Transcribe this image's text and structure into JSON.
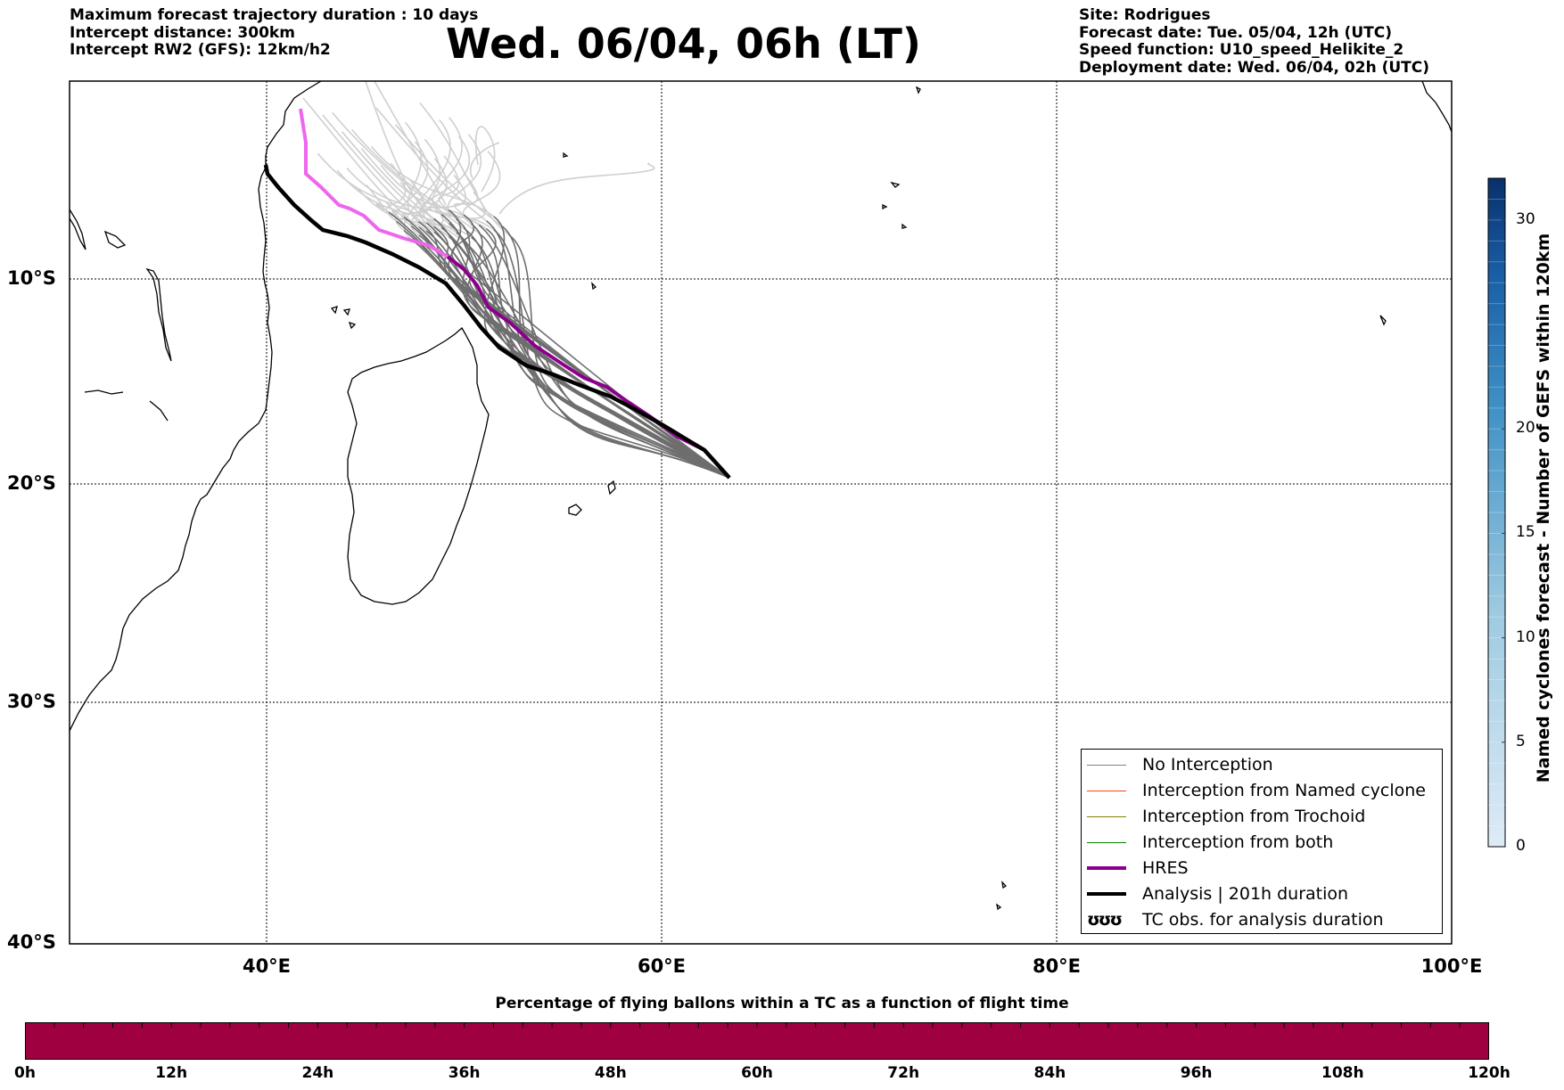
{
  "header": {
    "left_lines": [
      "Maximum forecast trajectory duration : 10 days",
      "Intercept distance: 300km",
      "Intercept RW2 (GFS):  12km/h2"
    ],
    "title": "Wed. 06/04, 06h (LT)",
    "right_lines": [
      "Site: Rodrigues",
      "Forecast date: Tue. 05/04, 12h (UTC)",
      "Speed function: U10_speed_Helikite_2",
      "Deployment date: Wed. 06/04, 02h (UTC)"
    ]
  },
  "map": {
    "extent": {
      "lon": [
        30,
        100
      ],
      "lat": [
        -40,
        0
      ]
    },
    "lat_labels": [
      "10°S",
      "20°S",
      "30°S",
      "40°S"
    ],
    "lon_labels": [
      "40°E",
      "60°E",
      "80°E",
      "100°E"
    ],
    "origin": {
      "lon": 63.4,
      "lat": -19.7
    },
    "colors": {
      "no_interception": "#777777",
      "hres": "#8B008B",
      "hres_late": "#EE66EE",
      "analysis": "#000000"
    }
  },
  "legend": {
    "items": [
      {
        "label": "No Interception",
        "color": "#808080"
      },
      {
        "label": "Interception from Named cyclone",
        "color": "#FF4500"
      },
      {
        "label": "Interception from Trochoid",
        "color": "#808000"
      },
      {
        "label": "Interception from both",
        "color": "#008000"
      },
      {
        "label": "HRES",
        "color": "#8B008B"
      },
      {
        "label": "Analysis | 201h duration",
        "color": "#000000"
      },
      {
        "label": "TC obs. for analysis duration",
        "icon": "cyclone-symbols",
        "symbol_text": "ʊʊʊ"
      }
    ]
  },
  "colorbar": {
    "label": "Named cyclones forecast - Number of GEFS within 120km",
    "ticks": [
      0,
      5,
      10,
      15,
      20,
      30
    ],
    "range": [
      0,
      32
    ]
  },
  "timebar": {
    "title": "Percentage of flying ballons within a TC as a function of flight time",
    "labels": [
      "0h",
      "12h",
      "24h",
      "36h",
      "48h",
      "60h",
      "72h",
      "84h",
      "96h",
      "108h",
      "120h"
    ],
    "color": "#9E0040"
  }
}
